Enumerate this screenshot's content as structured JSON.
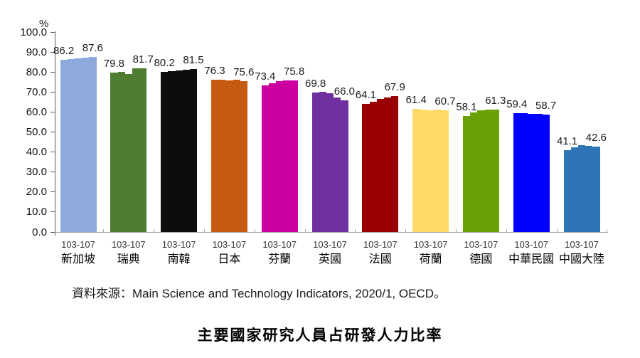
{
  "chart_data": {
    "type": "bar",
    "title": "主要國家研究人員占研發人力比率",
    "unit_label": "%",
    "period_label": "103-107",
    "ylim": [
      0,
      100
    ],
    "ytick_step": 10,
    "legend": "none",
    "grid": false,
    "categories": [
      "新加坡",
      "瑞典",
      "南韓",
      "日本",
      "芬蘭",
      "英國",
      "法國",
      "荷蘭",
      "德國",
      "中華民國",
      "中國大陸"
    ],
    "colors": [
      "#8EA9DB",
      "#4E7D32",
      "#0D0D0D",
      "#C55A11",
      "#CC00A0",
      "#7030A0",
      "#990000",
      "#FFD966",
      "#69A104",
      "#0000FF",
      "#2E75B6"
    ],
    "years": [
      "103",
      "104",
      "105",
      "106",
      "107"
    ],
    "series": [
      {
        "name": "新加坡",
        "values": [
          86.2,
          86.6,
          86.7,
          87.3,
          87.6
        ],
        "label_first": "86.2",
        "label_last": "87.6"
      },
      {
        "name": "瑞典",
        "values": [
          79.8,
          79.9,
          78.9,
          82.0,
          81.7
        ],
        "label_first": "79.8",
        "label_last": "81.7"
      },
      {
        "name": "南韓",
        "values": [
          80.2,
          80.5,
          80.9,
          81.3,
          81.5
        ],
        "label_first": "80.2",
        "label_last": "81.5"
      },
      {
        "name": "日本",
        "values": [
          76.3,
          76.3,
          75.9,
          76.1,
          75.6
        ],
        "label_first": "76.3",
        "label_last": "75.6"
      },
      {
        "name": "芬蘭",
        "values": [
          73.4,
          74.2,
          75.4,
          75.8,
          75.8
        ],
        "label_first": "73.4",
        "label_last": "75.8"
      },
      {
        "name": "英國",
        "values": [
          69.8,
          70.2,
          69.4,
          67.3,
          66.0
        ],
        "label_first": "69.8",
        "label_last": "66.0"
      },
      {
        "name": "法國",
        "values": [
          64.1,
          65.2,
          66.4,
          67.4,
          67.9
        ],
        "label_first": "64.1",
        "label_last": "67.9"
      },
      {
        "name": "荷蘭",
        "values": [
          61.4,
          61.3,
          61.0,
          61.1,
          60.7
        ],
        "label_first": "61.4",
        "label_last": "60.7"
      },
      {
        "name": "德國",
        "values": [
          58.1,
          59.9,
          61.0,
          61.1,
          61.3
        ],
        "label_first": "58.1",
        "label_last": "61.3"
      },
      {
        "name": "中華民國",
        "values": [
          59.4,
          59.4,
          58.9,
          58.9,
          58.7
        ],
        "label_first": "59.4",
        "label_last": "58.7"
      },
      {
        "name": "中國大陸",
        "values": [
          41.1,
          42.5,
          43.3,
          43.1,
          42.6
        ],
        "label_first": "41.1",
        "label_last": "42.6"
      }
    ]
  },
  "source": {
    "prefix": "資料來源：",
    "text": "Main Science and Technology Indicators, 2020/1, OECD。"
  },
  "title": "主要國家研究人員占研發人力比率"
}
